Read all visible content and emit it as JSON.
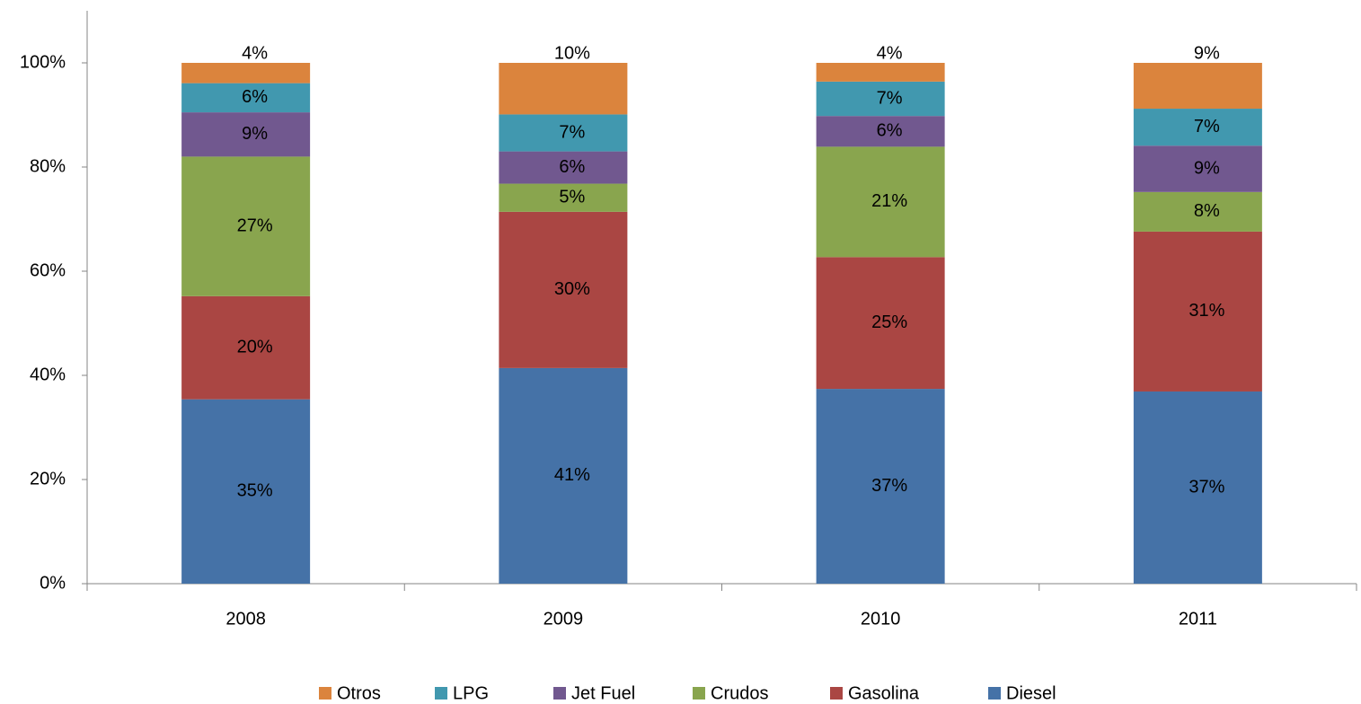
{
  "chart_data": {
    "type": "stacked_bar",
    "categories": [
      "2008",
      "2009",
      "2010",
      "2011"
    ],
    "series": [
      {
        "name": "Diesel",
        "color": "#4572a7",
        "values": [
          35.4,
          41.4,
          37.4,
          36.9
        ],
        "value_labels": [
          "35%",
          "41%",
          "37%",
          "37%"
        ]
      },
      {
        "name": "Gasolina",
        "color": "#aa4643",
        "values": [
          19.8,
          30.0,
          25.3,
          30.7
        ],
        "value_labels": [
          "20%",
          "30%",
          "25%",
          "31%"
        ]
      },
      {
        "name": "Crudos",
        "color": "#89a54e",
        "values": [
          26.8,
          5.4,
          21.2,
          7.6
        ],
        "value_labels": [
          "27%",
          "5%",
          "21%",
          "8%"
        ]
      },
      {
        "name": "Jet Fuel",
        "color": "#71588f",
        "values": [
          8.5,
          6.2,
          5.9,
          8.9
        ],
        "value_labels": [
          "9%",
          "6%",
          "6%",
          "9%"
        ]
      },
      {
        "name": "LPG",
        "color": "#4198af",
        "values": [
          5.6,
          7.1,
          6.6,
          7.1
        ],
        "value_labels": [
          "6%",
          "7%",
          "7%",
          "7%"
        ]
      },
      {
        "name": "Otros",
        "color": "#db843d",
        "values": [
          3.9,
          9.9,
          3.6,
          8.8
        ],
        "value_labels": [
          "4%",
          "10%",
          "4%",
          "9%"
        ]
      }
    ],
    "ylim": [
      0,
      110
    ],
    "yticks": [
      {
        "value": 0,
        "label": "0%"
      },
      {
        "value": 20,
        "label": "20%"
      },
      {
        "value": 40,
        "label": "40%"
      },
      {
        "value": 60,
        "label": "60%"
      },
      {
        "value": 80,
        "label": "80%"
      },
      {
        "value": 100,
        "label": "100%"
      }
    ],
    "legend": "bottom"
  }
}
